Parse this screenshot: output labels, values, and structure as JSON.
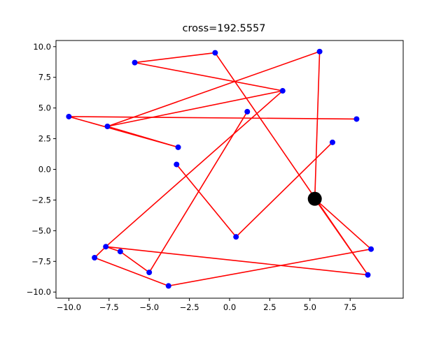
{
  "figure": {
    "title": "cross=192.5557"
  },
  "chart_data": {
    "type": "line",
    "title": "cross=192.5557",
    "xlabel": "",
    "ylabel": "",
    "xlim": [
      -10.8,
      10.8
    ],
    "ylim": [
      -10.5,
      10.5
    ],
    "xticks": [
      -10.0,
      -7.5,
      -5.0,
      -2.5,
      0.0,
      2.5,
      5.0,
      7.5
    ],
    "yticks": [
      -10.0,
      -7.5,
      -5.0,
      -2.5,
      0.0,
      2.5,
      5.0,
      7.5,
      10.0
    ],
    "xtick_labels": [
      "−10.0",
      "−7.5",
      "−5.0",
      "−2.5",
      "0.0",
      "2.5",
      "5.0",
      "7.5"
    ],
    "ytick_labels": [
      "−10.0",
      "−7.5",
      "−5.0",
      "−2.5",
      "0.0",
      "2.5",
      "5.0",
      "7.5",
      "10.0"
    ],
    "grid": false,
    "path_color": "#ff0000",
    "point_color": "#0000ff",
    "highlight_color": "#000000",
    "path": [
      {
        "x": 5.3,
        "y": -2.4
      },
      {
        "x": 8.6,
        "y": -8.6
      },
      {
        "x": -0.9,
        "y": 9.5
      },
      {
        "x": -5.9,
        "y": 8.7
      },
      {
        "x": 3.3,
        "y": 6.4
      },
      {
        "x": -7.6,
        "y": 3.5
      },
      {
        "x": 5.6,
        "y": 9.6
      },
      {
        "x": 5.3,
        "y": -2.4
      },
      {
        "x": 8.8,
        "y": -6.5
      },
      {
        "x": -3.8,
        "y": -9.5
      },
      {
        "x": -8.4,
        "y": -7.2
      },
      {
        "x": -7.7,
        "y": -6.3
      },
      {
        "x": 8.6,
        "y": -8.6
      }
    ],
    "path_segments": [
      [
        {
          "x": -10.0,
          "y": 4.3
        },
        {
          "x": 7.9,
          "y": 4.1
        }
      ],
      [
        {
          "x": -10.0,
          "y": 4.3
        },
        {
          "x": -3.2,
          "y": 1.8
        }
      ],
      [
        {
          "x": -7.6,
          "y": 3.5
        },
        {
          "x": -3.2,
          "y": 1.8
        }
      ],
      [
        {
          "x": -7.7,
          "y": -6.3
        },
        {
          "x": 3.3,
          "y": 6.4
        }
      ],
      [
        {
          "x": -5.0,
          "y": -8.4
        },
        {
          "x": 1.1,
          "y": 4.7
        }
      ],
      [
        {
          "x": -5.0,
          "y": -8.4
        },
        {
          "x": -6.8,
          "y": -6.7
        }
      ],
      [
        {
          "x": -6.8,
          "y": -6.7
        },
        {
          "x": -7.7,
          "y": -6.3
        }
      ],
      [
        {
          "x": -3.3,
          "y": 0.4
        },
        {
          "x": 0.4,
          "y": -5.5
        }
      ],
      [
        {
          "x": 0.4,
          "y": -5.5
        },
        {
          "x": 6.4,
          "y": 2.2
        }
      ]
    ],
    "points": [
      {
        "x": -10.0,
        "y": 4.3
      },
      {
        "x": -7.6,
        "y": 3.5
      },
      {
        "x": -3.2,
        "y": 1.8
      },
      {
        "x": -5.9,
        "y": 8.7
      },
      {
        "x": -0.9,
        "y": 9.5
      },
      {
        "x": 3.3,
        "y": 6.4
      },
      {
        "x": 5.6,
        "y": 9.6
      },
      {
        "x": 1.1,
        "y": 4.7
      },
      {
        "x": 7.9,
        "y": 4.1
      },
      {
        "x": 6.4,
        "y": 2.2
      },
      {
        "x": -3.3,
        "y": 0.4
      },
      {
        "x": 0.4,
        "y": -5.5
      },
      {
        "x": 8.8,
        "y": -6.5
      },
      {
        "x": 8.6,
        "y": -8.6
      },
      {
        "x": -7.7,
        "y": -6.3
      },
      {
        "x": -6.8,
        "y": -6.7
      },
      {
        "x": -8.4,
        "y": -7.2
      },
      {
        "x": -5.0,
        "y": -8.4
      },
      {
        "x": -3.8,
        "y": -9.5
      }
    ],
    "highlight": {
      "x": 5.3,
      "y": -2.4
    }
  }
}
